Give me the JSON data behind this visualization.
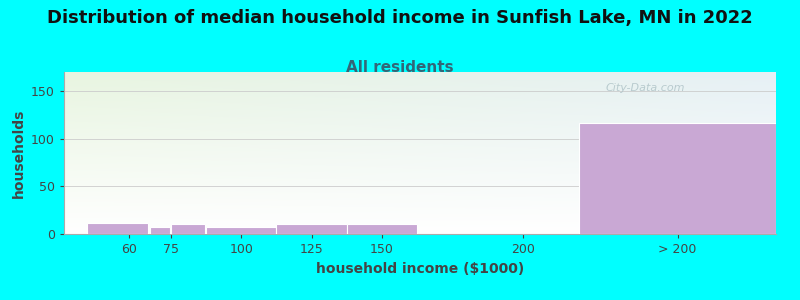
{
  "title": "Distribution of median household income in Sunfish Lake, MN in 2022",
  "subtitle": "All residents",
  "xlabel": "household income ($1000)",
  "ylabel": "households",
  "background_color": "#00FFFF",
  "plot_bg_gradient_top_left": "#e8f5e0",
  "plot_bg_gradient_top_right": "#e8f0f5",
  "plot_bg_gradient_bottom": "#ffffff",
  "bar_color": "#c9a8d4",
  "bar_edgecolor": "#ffffff",
  "bar_lefts": [
    45,
    67.5,
    75,
    87.5,
    112.5,
    137.5,
    162.5,
    220
  ],
  "bar_widths": [
    22,
    7,
    12,
    25,
    25,
    25,
    57,
    70
  ],
  "bar_heights": [
    12,
    7,
    11,
    7,
    10,
    10,
    0,
    117
  ],
  "xtick_labels": [
    "60",
    "75",
    "100",
    "125",
    "150",
    "200",
    "> 200"
  ],
  "xtick_positions": [
    60,
    75,
    100,
    125,
    150,
    200,
    255
  ],
  "ytick_positions": [
    0,
    50,
    100,
    150
  ],
  "ylim": [
    0,
    170
  ],
  "xlim": [
    37,
    290
  ],
  "title_fontsize": 13,
  "subtitle_fontsize": 11,
  "axis_label_fontsize": 10,
  "tick_fontsize": 9,
  "title_color": "#111111",
  "subtitle_color": "#336677",
  "axis_label_color": "#444444",
  "tick_color": "#444444",
  "watermark_text": "City-Data.com",
  "watermark_color": "#b0c4c8"
}
